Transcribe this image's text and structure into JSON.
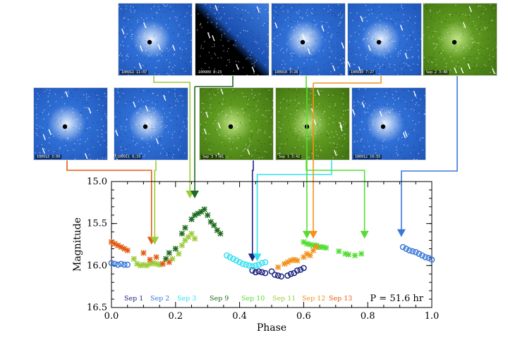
{
  "chart_data": {
    "type": "scatter",
    "xlabel": "Phase",
    "ylabel": "Magnitude",
    "xlim": [
      0.0,
      1.0
    ],
    "ylim": [
      16.5,
      15.0
    ],
    "y_inverted": true,
    "xticks": [
      "0.0",
      "0.2",
      "0.4",
      "0.6",
      "0.8",
      "1.0"
    ],
    "yticks": [
      "15.0",
      "15.5",
      "16.0",
      "16.5"
    ],
    "period_label": "P = 51.6 hr",
    "series": [
      {
        "name": "Sep 1",
        "color": "#1a237e",
        "marker": "circle",
        "points": [
          [
            0.44,
            16.06
          ],
          [
            0.45,
            16.08
          ],
          [
            0.46,
            16.07
          ],
          [
            0.47,
            16.08
          ],
          [
            0.48,
            16.09
          ],
          [
            0.5,
            16.07
          ],
          [
            0.51,
            16.11
          ],
          [
            0.52,
            16.12
          ],
          [
            0.53,
            16.13
          ],
          [
            0.55,
            16.12
          ],
          [
            0.56,
            16.1
          ],
          [
            0.57,
            16.09
          ],
          [
            0.58,
            16.06
          ],
          [
            0.59,
            16.05
          ],
          [
            0.6,
            16.03
          ]
        ]
      },
      {
        "name": "Sep 2",
        "color": "#3a78d8",
        "marker": "circle",
        "points": [
          [
            0.0,
            15.97
          ],
          [
            0.01,
            15.98
          ],
          [
            0.02,
            15.99
          ],
          [
            0.03,
            15.98
          ],
          [
            0.04,
            15.99
          ],
          [
            0.05,
            15.99
          ],
          [
            0.91,
            15.78
          ],
          [
            0.92,
            15.8
          ],
          [
            0.93,
            15.82
          ],
          [
            0.94,
            15.83
          ],
          [
            0.95,
            15.84
          ],
          [
            0.96,
            15.86
          ],
          [
            0.97,
            15.88
          ],
          [
            0.98,
            15.9
          ],
          [
            0.99,
            15.91
          ],
          [
            1.0,
            15.93
          ]
        ]
      },
      {
        "name": "Sep 3",
        "color": "#33e0f0",
        "marker": "circle",
        "points": [
          [
            0.36,
            15.88
          ],
          [
            0.37,
            15.9
          ],
          [
            0.38,
            15.92
          ],
          [
            0.39,
            15.94
          ],
          [
            0.4,
            15.96
          ],
          [
            0.41,
            15.98
          ],
          [
            0.42,
            15.99
          ],
          [
            0.43,
            16.0
          ],
          [
            0.44,
            16.01
          ],
          [
            0.45,
            16.0
          ],
          [
            0.46,
            15.99
          ],
          [
            0.47,
            15.97
          ],
          [
            0.48,
            15.96
          ]
        ]
      },
      {
        "name": "Sep 9",
        "color": "#1e6b1e",
        "marker": "cross",
        "points": [
          [
            0.17,
            15.92
          ],
          [
            0.18,
            15.85
          ],
          [
            0.2,
            15.8
          ],
          [
            0.22,
            15.62
          ],
          [
            0.23,
            15.55
          ],
          [
            0.25,
            15.45
          ],
          [
            0.26,
            15.4
          ],
          [
            0.27,
            15.38
          ],
          [
            0.28,
            15.36
          ],
          [
            0.29,
            15.33
          ],
          [
            0.3,
            15.4
          ],
          [
            0.31,
            15.48
          ],
          [
            0.32,
            15.52
          ],
          [
            0.33,
            15.58
          ],
          [
            0.34,
            15.62
          ]
        ]
      },
      {
        "name": "Sep 10",
        "color": "#55dd33",
        "marker": "cross",
        "points": [
          [
            0.6,
            15.72
          ],
          [
            0.61,
            15.74
          ],
          [
            0.62,
            15.75
          ],
          [
            0.63,
            15.76
          ],
          [
            0.64,
            15.76
          ],
          [
            0.65,
            15.78
          ],
          [
            0.66,
            15.78
          ],
          [
            0.67,
            15.79
          ],
          [
            0.71,
            15.83
          ],
          [
            0.73,
            15.86
          ],
          [
            0.74,
            15.87
          ],
          [
            0.76,
            15.88
          ],
          [
            0.78,
            15.86
          ]
        ]
      },
      {
        "name": "Sep 11",
        "color": "#9ccc3a",
        "marker": "cross",
        "points": [
          [
            0.07,
            15.92
          ],
          [
            0.08,
            15.98
          ],
          [
            0.09,
            16.0
          ],
          [
            0.1,
            15.99
          ],
          [
            0.11,
            16.0
          ],
          [
            0.12,
            15.98
          ],
          [
            0.13,
            15.97
          ],
          [
            0.14,
            15.98
          ],
          [
            0.15,
            15.99
          ],
          [
            0.16,
            15.98
          ],
          [
            0.19,
            15.92
          ],
          [
            0.21,
            15.86
          ],
          [
            0.22,
            15.76
          ],
          [
            0.23,
            15.7
          ],
          [
            0.24,
            15.66
          ],
          [
            0.25,
            15.62
          ],
          [
            0.26,
            15.68
          ]
        ]
      },
      {
        "name": "Sep 12",
        "color": "#f2921a",
        "marker": "cross",
        "points": [
          [
            0.52,
            16.02
          ],
          [
            0.54,
            15.98
          ],
          [
            0.55,
            15.96
          ],
          [
            0.56,
            15.94
          ],
          [
            0.57,
            15.93
          ],
          [
            0.58,
            15.94
          ],
          [
            0.6,
            15.9
          ],
          [
            0.61,
            15.86
          ],
          [
            0.62,
            15.88
          ],
          [
            0.63,
            15.82
          ],
          [
            0.64,
            15.78
          ]
        ]
      },
      {
        "name": "Sep 13",
        "color": "#e25c12",
        "marker": "cross",
        "points": [
          [
            0.0,
            15.72
          ],
          [
            0.01,
            15.74
          ],
          [
            0.02,
            15.76
          ],
          [
            0.03,
            15.78
          ],
          [
            0.04,
            15.8
          ],
          [
            0.05,
            15.82
          ],
          [
            0.1,
            15.85
          ],
          [
            0.12,
            15.93
          ],
          [
            0.14,
            15.9
          ],
          [
            0.16,
            15.98
          ],
          [
            0.18,
            15.96
          ]
        ]
      }
    ],
    "arrows": [
      {
        "color": "#e25c12",
        "x": 0.125,
        "y": 15.75
      },
      {
        "color": "#9ccc3a",
        "x": 0.135,
        "y": 15.75
      },
      {
        "color": "#9ccc3a",
        "x": 0.245,
        "y": 15.2
      },
      {
        "color": "#1e6b1e",
        "x": 0.26,
        "y": 15.2
      },
      {
        "color": "#1a237e",
        "x": 0.44,
        "y": 15.95
      },
      {
        "color": "#33e0f0",
        "x": 0.455,
        "y": 15.95
      },
      {
        "color": "#55dd33",
        "x": 0.61,
        "y": 15.68
      },
      {
        "color": "#f2921a",
        "x": 0.63,
        "y": 15.68
      },
      {
        "color": "#55dd33",
        "x": 0.79,
        "y": 15.68
      },
      {
        "color": "#3a78d8",
        "x": 0.905,
        "y": 15.66
      }
    ]
  },
  "images": [
    {
      "caption": "100911 11:07",
      "palette": "blue"
    },
    {
      "caption": "100909 8:23",
      "palette": "blue"
    },
    {
      "caption": "100910 3:28",
      "palette": "blue"
    },
    {
      "caption": "100910 7:27",
      "palette": "blue"
    },
    {
      "caption": "Sep 2 3:48",
      "palette": "green"
    },
    {
      "caption": "100913 3:09",
      "palette": "blue"
    },
    {
      "caption": "100911 6:19",
      "palette": "blue"
    },
    {
      "caption": "Sep 3 7:41",
      "palette": "green"
    },
    {
      "caption": "Sep 1 3:42",
      "palette": "green"
    },
    {
      "caption": "100912 10:55",
      "palette": "blue"
    }
  ]
}
